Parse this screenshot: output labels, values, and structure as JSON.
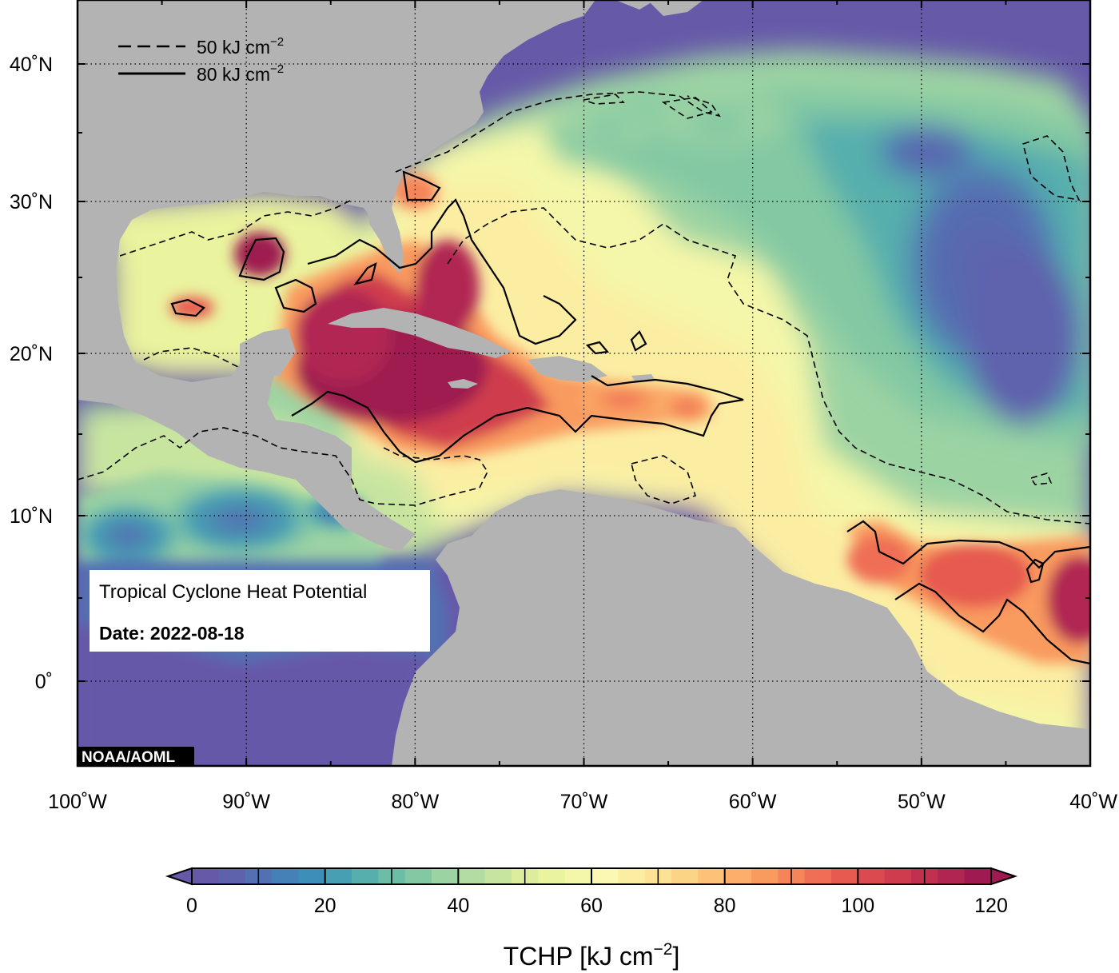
{
  "map": {
    "legend_50_label": "50 kJ cm",
    "legend_80_label": "80 kJ cm",
    "legend_exp": "−2",
    "info_title": "Tropical Cyclone Heat Potential",
    "info_date": "Date: 2022-08-18",
    "credit": "NOAA/AOML",
    "lat_labels": [
      "40˚N",
      "30˚N",
      "20˚N",
      "10˚N",
      "0˚"
    ],
    "lon_labels": [
      "100˚W",
      "90˚W",
      "80˚W",
      "70˚W",
      "60˚W",
      "50˚W",
      "40˚W"
    ],
    "land_color": "#b3b3b3",
    "cold_ocean_color": "#6659a8"
  },
  "colorbar": {
    "ticks": [
      "0",
      "20",
      "40",
      "60",
      "80",
      "100",
      "120"
    ],
    "title": "TCHP [kJ cm",
    "title_exp": "−2",
    "title_end": "]",
    "colors": [
      "#6659a8",
      "#5e62ad",
      "#5370b2",
      "#4580b6",
      "#3d8eb8",
      "#479fb3",
      "#57afad",
      "#6bbda6",
      "#82c8a3",
      "#9cd3a3",
      "#b3dca3",
      "#c8e5a0",
      "#dcee9e",
      "#eaf39e",
      "#f4f7a9",
      "#fbf8b4",
      "#fbeea3",
      "#fce295",
      "#fcd486",
      "#fdc278",
      "#fcae6a",
      "#f99a5e",
      "#f5845a",
      "#ef6e55",
      "#e65a50",
      "#db4a4e",
      "#cf3c4e",
      "#c1304f",
      "#b12552",
      "#9e1a50"
    ]
  }
}
